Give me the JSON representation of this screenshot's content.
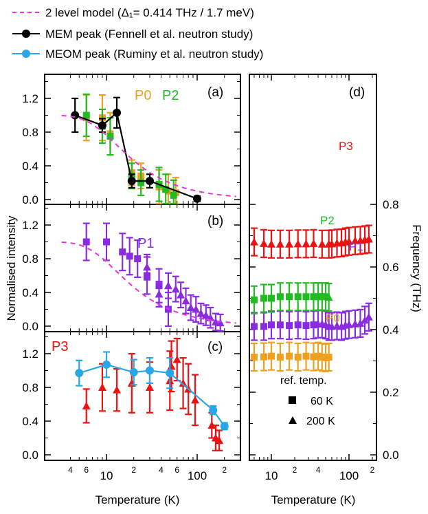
{
  "legend": [
    {
      "key": "model",
      "text": "2 level model (Δ₁= 0.414 THz / 1.7 meV)",
      "color": "#e535d8",
      "style": "dashed"
    },
    {
      "key": "mem",
      "text": "MEM peak (Fennell et al. neutron study)",
      "color": "#000000",
      "style": "line-marker"
    },
    {
      "key": "meom",
      "text": "MEOM peak (Ruminy et al. neutron study)",
      "color": "#2aa6e6",
      "style": "line-marker"
    }
  ],
  "axes": {
    "left_ylabel": "Normalised intensity",
    "right_ylabel": "Frequency (THz)",
    "xlabel": "Temperature (K)",
    "left_yticks": [
      "0.0",
      "0.4",
      "0.8",
      "1.2"
    ],
    "right_yticks": [
      "0.0",
      "0.2",
      "0.4",
      "0.6",
      "0.8"
    ],
    "x_major_ticks": [
      "10",
      "100"
    ],
    "x_minor_labels_main": [
      "4",
      "6",
      "2",
      "4",
      "6",
      "2"
    ],
    "x_minor_labels_d": [
      "2",
      "4",
      "2"
    ]
  },
  "labels": {
    "panel_a": "(a)",
    "panel_b": "(b)",
    "panel_c": "(c)",
    "panel_d": "(d)",
    "p0": "P0",
    "p1": "P1",
    "p2": "P2",
    "p3": "P3",
    "ref_title": "ref. temp.",
    "ref_60": "60 K",
    "ref_200": "200 K"
  },
  "colors": {
    "p0": "#f0a020",
    "p1": "#8a2be2",
    "p2": "#22bb22",
    "p3": "#ee1111",
    "model": "#e535d8",
    "mem": "#000000",
    "meom": "#2aa6e6"
  },
  "chart_data": [
    {
      "panel": "a",
      "type": "scatter",
      "xscale": "log",
      "xlim": [
        3,
        270
      ],
      "ylim": [
        -0.05,
        1.5
      ],
      "xlabel": "Temperature (K)",
      "ylabel": "Normalised intensity",
      "series": [
        {
          "name": "P0",
          "color": "p0",
          "marker": "square",
          "points": [
            [
              6,
              0.97,
              0.27
            ],
            [
              9,
              0.97,
              0.27
            ],
            [
              11,
              0.78,
              0.25
            ],
            [
              19,
              0.32,
              0.15
            ],
            [
              24,
              0.28,
              0.15
            ],
            [
              38,
              0.15,
              0.2
            ],
            [
              48,
              0.1,
              0.2
            ],
            [
              58,
              0.08,
              0.18
            ]
          ]
        },
        {
          "name": "P2",
          "color": "p2",
          "marker": "square",
          "points": [
            [
              6,
              1.0,
              0.25
            ],
            [
              9,
              0.87,
              0.2
            ],
            [
              11,
              0.75,
              0.22
            ],
            [
              19,
              0.28,
              0.15
            ],
            [
              24,
              0.2,
              0.15
            ],
            [
              38,
              0.18,
              0.2
            ],
            [
              45,
              0.12,
              0.18
            ],
            [
              55,
              0.05,
              0.18
            ]
          ]
        },
        {
          "name": "MEM peak (Fennell et al. neutron study)",
          "color": "mem",
          "marker": "circle",
          "connect": true,
          "points": [
            [
              4.5,
              1.0,
              0.2
            ],
            [
              9,
              0.88,
              0.08
            ],
            [
              13,
              1.03,
              0.18
            ],
            [
              19,
              0.22,
              0.08
            ],
            [
              30,
              0.22,
              0.08
            ],
            [
              100,
              0.01,
              0.03
            ]
          ]
        },
        {
          "name": "2 level model",
          "color": "model",
          "model": true
        }
      ]
    },
    {
      "panel": "b",
      "type": "scatter",
      "xscale": "log",
      "xlim": [
        3,
        270
      ],
      "ylim": [
        -0.05,
        1.5
      ],
      "series": [
        {
          "name": "P1",
          "color": "p1",
          "marker": "square",
          "points": [
            [
              6,
              1.0,
              0.22
            ],
            [
              10,
              1.0,
              0.22
            ],
            [
              15,
              0.88,
              0.22
            ],
            [
              18,
              0.83,
              0.22
            ],
            [
              22,
              0.8,
              0.22
            ],
            [
              28,
              0.6,
              0.22
            ],
            [
              38,
              0.48,
              0.2
            ],
            [
              48,
              0.2,
              0.2
            ]
          ]
        },
        {
          "name": "P1",
          "color": "p1",
          "marker": "triangle",
          "points": [
            [
              28,
              0.7,
              0.15
            ],
            [
              38,
              0.38,
              0.15
            ],
            [
              48,
              0.48,
              0.15
            ],
            [
              58,
              0.44,
              0.15
            ],
            [
              66,
              0.37,
              0.15
            ],
            [
              75,
              0.3,
              0.15
            ],
            [
              85,
              0.22,
              0.15
            ],
            [
              97,
              0.2,
              0.15
            ],
            [
              110,
              0.15,
              0.12
            ],
            [
              125,
              0.13,
              0.12
            ],
            [
              140,
              0.1,
              0.12
            ],
            [
              160,
              0.05,
              0.1
            ],
            [
              180,
              0.04,
              0.1
            ]
          ]
        },
        {
          "name": "2 level model",
          "color": "model",
          "model": true
        }
      ]
    },
    {
      "panel": "c",
      "type": "scatter",
      "xscale": "log",
      "xlim": [
        3,
        270
      ],
      "ylim": [
        -0.05,
        1.5
      ],
      "series": [
        {
          "name": "P3",
          "color": "p3",
          "marker": "triangle",
          "points": [
            [
              6,
              0.58,
              0.2
            ],
            [
              9,
              0.8,
              0.28
            ],
            [
              13,
              0.77,
              0.25
            ],
            [
              19,
              0.85,
              0.35
            ],
            [
              30,
              0.8,
              0.3
            ],
            [
              50,
              0.88,
              0.35
            ],
            [
              52,
              1.05,
              0.3
            ],
            [
              60,
              1.13,
              0.25
            ],
            [
              70,
              0.85,
              0.3
            ],
            [
              80,
              0.78,
              0.3
            ],
            [
              95,
              0.65,
              0.3
            ],
            [
              145,
              0.35,
              0.15
            ],
            [
              160,
              0.2,
              0.15
            ],
            [
              175,
              0.17,
              0.12
            ]
          ]
        },
        {
          "name": "MEOM peak (Ruminy et al. neutron study)",
          "color": "meom",
          "marker": "circle",
          "connect": true,
          "points": [
            [
              5,
              0.97,
              0.15
            ],
            [
              10,
              1.07,
              0.15
            ],
            [
              20,
              0.98,
              0.15
            ],
            [
              30,
              1.0,
              0.15
            ],
            [
              50,
              0.97,
              0.18
            ],
            [
              150,
              0.53,
              0.05
            ],
            [
              200,
              0.34,
              0.04
            ]
          ]
        }
      ]
    },
    {
      "panel": "d",
      "type": "scatter",
      "xscale": "log",
      "xlim": [
        5,
        270
      ],
      "ylim": [
        0.0,
        0.9
      ],
      "xlabel": "Temperature (K)",
      "ylabel": "Frequency (THz)",
      "series": [
        {
          "name": "P0",
          "color": "p0",
          "marker": "square",
          "points": [
            [
              6,
              0.312
            ],
            [
              8,
              0.313
            ],
            [
              10,
              0.315
            ],
            [
              13,
              0.312
            ],
            [
              17,
              0.315
            ],
            [
              22,
              0.312
            ],
            [
              28,
              0.315
            ],
            [
              35,
              0.313
            ],
            [
              40,
              0.315
            ],
            [
              45,
              0.312
            ],
            [
              50,
              0.31
            ],
            [
              55,
              0.312
            ]
          ]
        },
        {
          "name": "P1",
          "color": "p1",
          "marker": "square",
          "points": [
            [
              6,
              0.41
            ],
            [
              8,
              0.41
            ],
            [
              10,
              0.415
            ],
            [
              13,
              0.415
            ],
            [
              17,
              0.413
            ],
            [
              22,
              0.415
            ],
            [
              28,
              0.413
            ],
            [
              35,
              0.415
            ]
          ]
        },
        {
          "name": "P1",
          "color": "p1",
          "marker": "triangle",
          "points": [
            [
              40,
              0.418
            ],
            [
              45,
              0.418
            ],
            [
              50,
              0.415
            ],
            [
              55,
              0.41
            ],
            [
              60,
              0.41
            ],
            [
              70,
              0.412
            ],
            [
              80,
              0.41
            ],
            [
              90,
              0.414
            ],
            [
              100,
              0.416
            ],
            [
              120,
              0.418
            ],
            [
              140,
              0.42
            ],
            [
              160,
              0.43
            ],
            [
              180,
              0.44
            ]
          ]
        },
        {
          "name": "P2",
          "color": "p2",
          "marker": "square",
          "points": [
            [
              6,
              0.495
            ],
            [
              8,
              0.5
            ],
            [
              10,
              0.5
            ],
            [
              13,
              0.505
            ],
            [
              17,
              0.505
            ],
            [
              22,
              0.505
            ],
            [
              28,
              0.505
            ],
            [
              35,
              0.505
            ],
            [
              40,
              0.505
            ],
            [
              45,
              0.505
            ],
            [
              50,
              0.505
            ]
          ]
        },
        {
          "name": "P2",
          "color": "p2",
          "marker": "triangle",
          "points": [
            [
              55,
              0.503
            ]
          ]
        },
        {
          "name": "P3",
          "color": "p3",
          "marker": "triangle",
          "points": [
            [
              6,
              0.68
            ],
            [
              8,
              0.675
            ],
            [
              10,
              0.673
            ],
            [
              13,
              0.673
            ],
            [
              17,
              0.673
            ],
            [
              22,
              0.674
            ],
            [
              28,
              0.674
            ],
            [
              35,
              0.675
            ],
            [
              45,
              0.673
            ],
            [
              55,
              0.673
            ],
            [
              60,
              0.674
            ],
            [
              70,
              0.676
            ],
            [
              80,
              0.677
            ],
            [
              90,
              0.68
            ],
            [
              100,
              0.682
            ],
            [
              120,
              0.684
            ],
            [
              140,
              0.685
            ],
            [
              160,
              0.687
            ],
            [
              180,
              0.689
            ]
          ]
        }
      ]
    }
  ]
}
